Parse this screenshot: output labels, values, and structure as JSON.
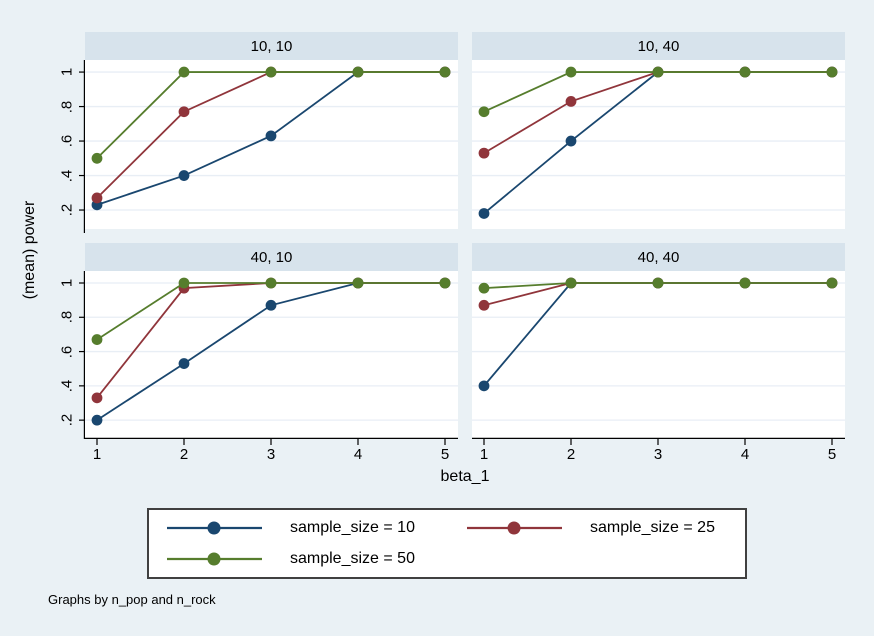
{
  "figure": {
    "ylabel": "(mean) power",
    "xlabel": "beta_1",
    "note": "Graphs by n_pop and n_rock"
  },
  "colors": {
    "background": "#eaf1f5",
    "strip_bg": "#d7e3ec",
    "plot_bg": "#ffffff",
    "gridline": "#e8eef5",
    "axis": "#000000",
    "legend_border": "#404040",
    "navy": "#1a476f",
    "maroon": "#90353b",
    "green": "#567d2d"
  },
  "chart_data": {
    "type": "line",
    "title": "",
    "xlabel": "beta_1",
    "ylabel": "(mean) power",
    "x": [
      1,
      2,
      3,
      4,
      5
    ],
    "xtick_labels": [
      "1",
      "2",
      "3",
      "4",
      "5"
    ],
    "ytick_labels": [
      ".2",
      ".4",
      ".6",
      ".8",
      "1"
    ],
    "ytick_values": [
      0.2,
      0.4,
      0.6,
      0.8,
      1.0
    ],
    "ylim": [
      0.09,
      1.07
    ],
    "grid": true,
    "facet_by": "n_pop and n_rock",
    "facets": [
      {
        "title": "10, 10",
        "series": [
          {
            "name": "sample_size = 10",
            "color": "navy",
            "values": [
              0.23,
              0.4,
              0.63,
              1.0,
              1.0
            ]
          },
          {
            "name": "sample_size = 25",
            "color": "maroon",
            "values": [
              0.27,
              0.77,
              1.0,
              1.0,
              1.0
            ]
          },
          {
            "name": "sample_size = 50",
            "color": "green",
            "values": [
              0.5,
              1.0,
              1.0,
              1.0,
              1.0
            ]
          }
        ]
      },
      {
        "title": "10, 40",
        "series": [
          {
            "name": "sample_size = 10",
            "color": "navy",
            "values": [
              0.18,
              0.6,
              1.0,
              1.0,
              1.0
            ]
          },
          {
            "name": "sample_size = 25",
            "color": "maroon",
            "values": [
              0.53,
              0.83,
              1.0,
              1.0,
              1.0
            ]
          },
          {
            "name": "sample_size = 50",
            "color": "green",
            "values": [
              0.77,
              1.0,
              1.0,
              1.0,
              1.0
            ]
          }
        ]
      },
      {
        "title": "40, 10",
        "series": [
          {
            "name": "sample_size = 10",
            "color": "navy",
            "values": [
              0.2,
              0.53,
              0.87,
              1.0,
              1.0
            ]
          },
          {
            "name": "sample_size = 25",
            "color": "maroon",
            "values": [
              0.33,
              0.97,
              1.0,
              1.0,
              1.0
            ]
          },
          {
            "name": "sample_size = 50",
            "color": "green",
            "values": [
              0.67,
              1.0,
              1.0,
              1.0,
              1.0
            ]
          }
        ]
      },
      {
        "title": "40, 40",
        "series": [
          {
            "name": "sample_size = 10",
            "color": "navy",
            "values": [
              0.4,
              1.0,
              1.0,
              1.0,
              1.0
            ]
          },
          {
            "name": "sample_size = 25",
            "color": "maroon",
            "values": [
              0.87,
              1.0,
              1.0,
              1.0,
              1.0
            ]
          },
          {
            "name": "sample_size = 50",
            "color": "green",
            "values": [
              0.97,
              1.0,
              1.0,
              1.0,
              1.0
            ]
          }
        ]
      }
    ],
    "legend": {
      "position": "bottom",
      "entries": [
        {
          "name": "sample_size = 10",
          "color": "navy"
        },
        {
          "name": "sample_size = 25",
          "color": "maroon"
        },
        {
          "name": "sample_size = 50",
          "color": "green"
        }
      ]
    }
  }
}
